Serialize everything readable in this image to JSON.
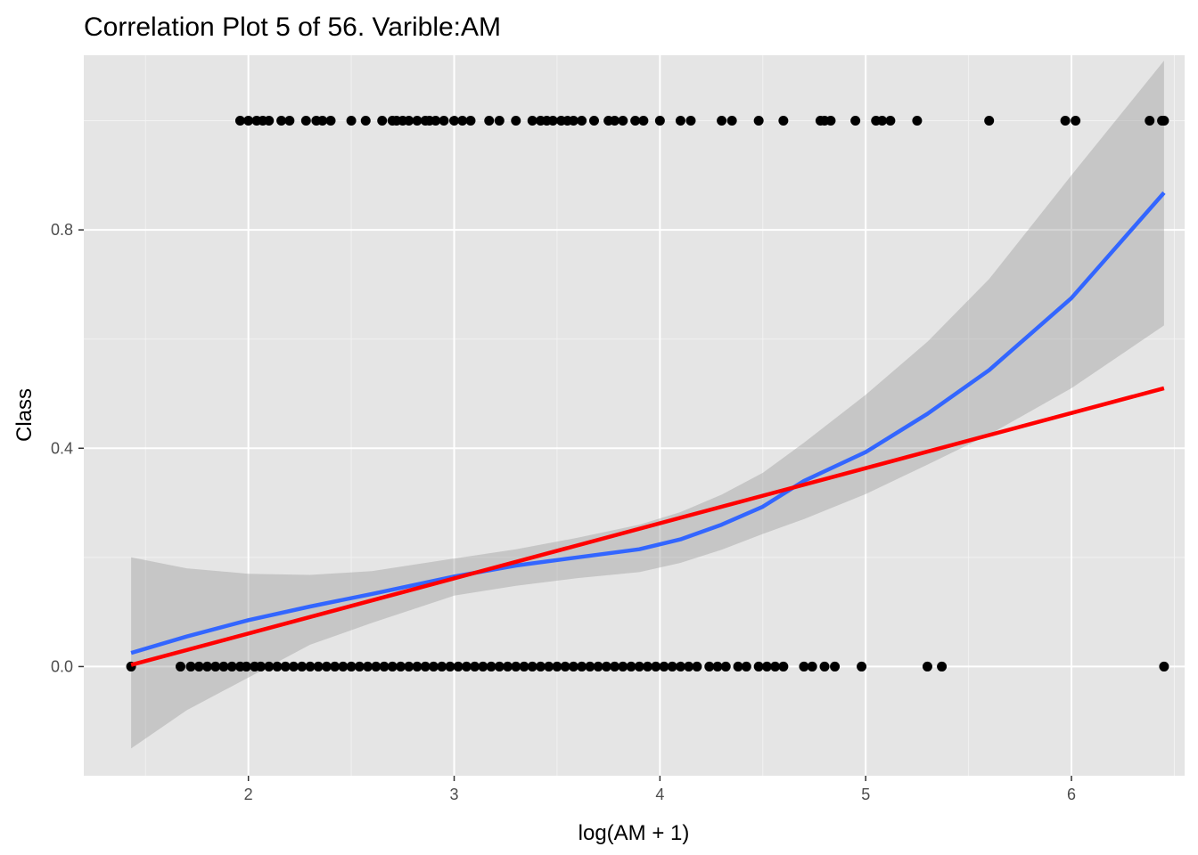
{
  "chart_data": {
    "type": "scatter",
    "title": "Correlation Plot 5 of 56. Varible:AM",
    "xlabel": "log(AM + 1)",
    "ylabel": "Class",
    "xlim": [
      1.2,
      6.55
    ],
    "ylim": [
      -0.2,
      1.12
    ],
    "x_ticks": [
      2,
      3,
      4,
      5,
      6
    ],
    "y_ticks": [
      0.0,
      0.4,
      0.8
    ],
    "x_tick_labels": [
      "2",
      "3",
      "4",
      "5",
      "6"
    ],
    "y_tick_labels": [
      "0.0",
      "0.4",
      "0.8"
    ],
    "grid": true,
    "panel_background": "#e5e5e5",
    "points_class1_x": [
      1.96,
      2.0,
      2.04,
      2.07,
      2.1,
      2.16,
      2.2,
      2.28,
      2.33,
      2.36,
      2.4,
      2.5,
      2.57,
      2.65,
      2.7,
      2.72,
      2.75,
      2.78,
      2.82,
      2.86,
      2.88,
      2.91,
      2.95,
      3.0,
      3.04,
      3.08,
      3.17,
      3.22,
      3.3,
      3.38,
      3.42,
      3.45,
      3.48,
      3.52,
      3.55,
      3.58,
      3.62,
      3.68,
      3.75,
      3.78,
      3.82,
      3.88,
      3.92,
      4.0,
      4.1,
      4.15,
      4.3,
      4.35,
      4.48,
      4.6,
      4.78,
      4.8,
      4.83,
      4.95,
      5.05,
      5.08,
      5.12,
      5.25,
      5.6,
      5.97,
      6.02,
      6.38,
      6.44,
      6.45
    ],
    "points_class0_x": [
      1.43,
      1.67,
      1.72,
      1.76,
      1.8,
      1.84,
      1.88,
      1.92,
      1.96,
      1.99,
      2.03,
      2.06,
      2.1,
      2.14,
      2.18,
      2.22,
      2.26,
      2.3,
      2.34,
      2.38,
      2.42,
      2.46,
      2.5,
      2.54,
      2.58,
      2.62,
      2.66,
      2.7,
      2.74,
      2.78,
      2.82,
      2.86,
      2.9,
      2.94,
      2.98,
      3.02,
      3.06,
      3.1,
      3.14,
      3.18,
      3.22,
      3.26,
      3.3,
      3.34,
      3.38,
      3.42,
      3.46,
      3.5,
      3.54,
      3.58,
      3.62,
      3.66,
      3.7,
      3.74,
      3.78,
      3.82,
      3.86,
      3.9,
      3.94,
      3.98,
      4.02,
      4.06,
      4.1,
      4.14,
      4.18,
      4.24,
      4.28,
      4.32,
      4.38,
      4.42,
      4.48,
      4.52,
      4.56,
      4.6,
      4.7,
      4.74,
      4.8,
      4.85,
      4.98,
      5.3,
      5.37,
      6.45
    ],
    "series": [
      {
        "name": "",
        "type": "smooth",
        "color": "#3366ff",
        "x": [
          1.43,
          1.7,
          2.0,
          2.3,
          2.6,
          3.0,
          3.3,
          3.6,
          3.9,
          4.1,
          4.3,
          4.5,
          4.7,
          5.0,
          5.3,
          5.6,
          6.0,
          6.45
        ],
        "y": [
          0.025,
          0.055,
          0.085,
          0.11,
          0.133,
          0.165,
          0.185,
          0.2,
          0.215,
          0.233,
          0.26,
          0.293,
          0.34,
          0.393,
          0.463,
          0.543,
          0.675,
          0.868
        ],
        "ci_lower": [
          -0.15,
          -0.08,
          -0.02,
          0.04,
          0.08,
          0.13,
          0.148,
          0.162,
          0.173,
          0.19,
          0.214,
          0.243,
          0.27,
          0.316,
          0.37,
          0.425,
          0.51,
          0.625
        ],
        "ci_upper": [
          0.2,
          0.18,
          0.17,
          0.168,
          0.175,
          0.198,
          0.215,
          0.236,
          0.26,
          0.283,
          0.315,
          0.355,
          0.41,
          0.498,
          0.595,
          0.71,
          0.9,
          1.11
        ]
      },
      {
        "name": "",
        "type": "linear",
        "color": "#ff0000",
        "x": [
          1.43,
          6.45
        ],
        "y": [
          0.003,
          0.51
        ]
      }
    ]
  }
}
